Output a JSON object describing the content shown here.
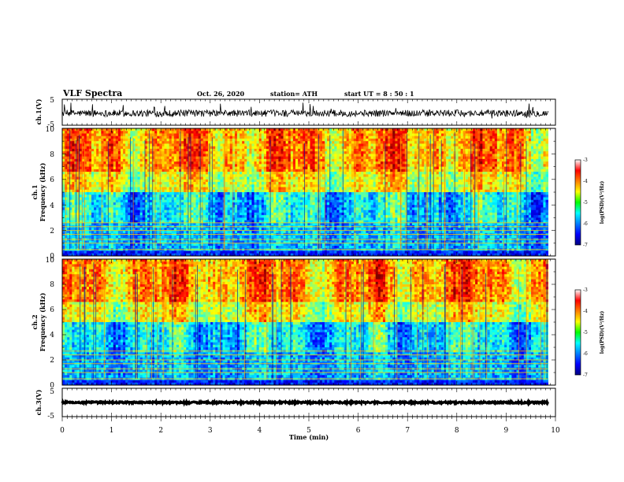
{
  "header": {
    "title": "VLF Spectra",
    "date": "Oct. 26, 2020",
    "station": "station= ATH",
    "start": "start  UT =   8  : 50 : 1"
  },
  "chart_data": [
    {
      "type": "line",
      "name": "channel-1-waveform",
      "ylabel": "ch.1(V)",
      "ylim": [
        -5,
        5
      ],
      "yticks": [
        "5",
        "-5"
      ],
      "xlim": [
        0,
        10
      ],
      "x_end_data": 9.85,
      "baseline": -0.4,
      "amplitude": 1.3
    },
    {
      "type": "heatmap",
      "name": "channel-1-spectrogram",
      "ylabel": "ch.1\nFrequency  (kHz)",
      "ylim": [
        0,
        10
      ],
      "yticks": [
        "0",
        "2",
        "4",
        "6",
        "8",
        "10"
      ],
      "xlim": [
        0,
        10
      ],
      "x_end_data": 9.85,
      "colorbar": {
        "label": "log(PSD)(V²/Hz)",
        "range": [
          -7,
          -3
        ],
        "ticks": [
          "-3",
          "-4",
          "-5",
          "-6",
          "-7"
        ]
      },
      "bands_khz": [
        0.5,
        1.0,
        1.3,
        1.7,
        2.0,
        2.3,
        2.6
      ]
    },
    {
      "type": "heatmap",
      "name": "channel-2-spectrogram",
      "ylabel": "ch.2\nFrequency  (kHz)",
      "ylim": [
        0,
        10
      ],
      "yticks": [
        "0",
        "2",
        "4",
        "6",
        "8",
        "10"
      ],
      "xlim": [
        0,
        10
      ],
      "x_end_data": 9.85,
      "colorbar": {
        "label": "log(PSD)(V²/Hz)",
        "range": [
          -7,
          -3
        ],
        "ticks": [
          "-3",
          "-4",
          "-5",
          "-6",
          "-7"
        ]
      },
      "bands_khz": [
        0.5,
        1.0,
        1.3,
        1.7,
        2.0,
        2.4,
        2.7
      ]
    },
    {
      "type": "line",
      "name": "channel-3-waveform",
      "ylabel": "ch.3(V)",
      "ylim": [
        -5,
        5
      ],
      "yticks": [
        "5",
        "-5"
      ],
      "xlim": [
        0,
        10
      ],
      "x_end_data": 9.85,
      "baseline": 0.0,
      "amplitude": 0.3,
      "xlabel": "Time  (min)",
      "xticks": [
        "0",
        "1",
        "2",
        "3",
        "4",
        "5",
        "6",
        "7",
        "8",
        "9",
        "10"
      ]
    }
  ]
}
